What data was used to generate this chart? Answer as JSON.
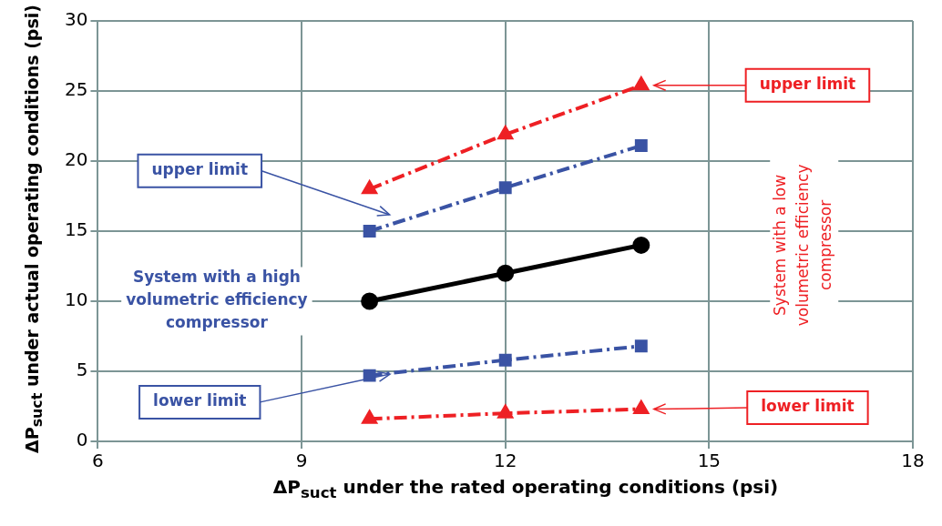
{
  "chart_data": {
    "type": "line",
    "xlabel": "ΔP$_{suct}$ under the rated operating conditions  (psi)",
    "ylabel": "ΔP$_{suct}$ under actual operating conditions (psi)",
    "xlim": [
      6,
      18
    ],
    "xticks": [
      6,
      9,
      12,
      15,
      18
    ],
    "ylim": [
      0,
      30
    ],
    "yticks": [
      0,
      5,
      10,
      15,
      20,
      25,
      30
    ],
    "grid": true,
    "legend": false,
    "series": [
      {
        "color": "#000000",
        "x": [
          10,
          12,
          14
        ],
        "values": [
          10,
          12,
          14
        ],
        "marker": "circle",
        "line_style": "solid"
      },
      {
        "color": "#3a53a4",
        "x": [
          10,
          12,
          14
        ],
        "values": [
          15,
          18.1,
          21.1
        ],
        "marker": "square",
        "line_style": "dashed"
      },
      {
        "color": "#3a53a4",
        "x": [
          10,
          12,
          14
        ],
        "values": [
          4.7,
          5.8,
          6.8
        ],
        "marker": "square",
        "line_style": "dashed"
      },
      {
        "color": "#ee2024",
        "x": [
          10,
          12,
          14
        ],
        "values": [
          18,
          21.9,
          25.4
        ],
        "marker": "triangle",
        "line_style": "dashed"
      },
      {
        "color": "#ee2024",
        "x": [
          10,
          12,
          14
        ],
        "values": [
          1.6,
          2,
          2.3
        ],
        "marker": "triangle",
        "line_style": "dashed"
      }
    ],
    "annotations": [
      "upper limit",
      {
        "text": "lower limit",
        "x": 10.3,
        "y": 4.8
      },
      "System with a high volumetric efficiency compressor",
      "upper limit",
      "lower limit",
      "System with a low volumetric efficiency compressor"
    ]
  }
}
